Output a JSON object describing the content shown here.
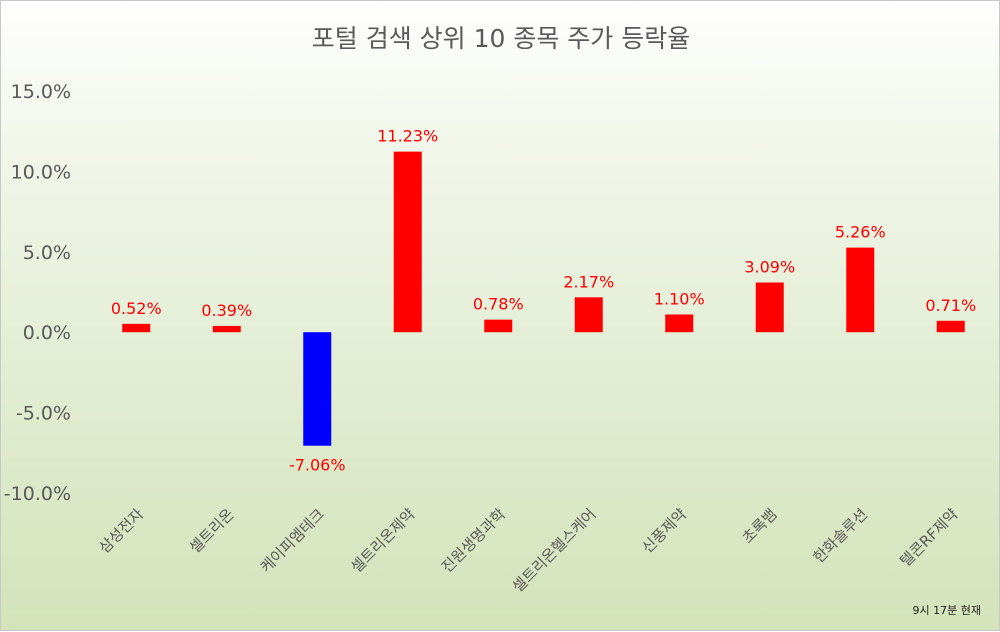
{
  "chart_data": {
    "type": "bar",
    "title": "포털 검색 상위 10 종목 주가 등락율",
    "categories": [
      "삼성전자",
      "셀트리온",
      "케이피엠테크",
      "셀트리온제약",
      "진원생명과학",
      "셀트리온헬스케어",
      "신풍제약",
      "초록뱀",
      "한화솔루션",
      "텔콘RF제약"
    ],
    "values": [
      0.52,
      0.39,
      -7.06,
      11.23,
      0.78,
      2.17,
      1.1,
      3.09,
      5.26,
      0.71
    ],
    "value_labels": [
      "0.52%",
      "0.39%",
      "-7.06%",
      "11.23%",
      "0.78%",
      "2.17%",
      "1.10%",
      "3.09%",
      "5.26%",
      "0.71%"
    ],
    "y_ticks": [
      15,
      10,
      5,
      0,
      -5,
      -10
    ],
    "y_tick_labels": [
      "15.0%",
      "10.0%",
      "5.0%",
      "0.0%",
      "-5.0%",
      "-10.0%"
    ],
    "ylim": [
      -10,
      15
    ],
    "xlabel": "",
    "ylabel": "",
    "grid": false,
    "colors": {
      "positive": "#ff0000",
      "negative": "#0000ff",
      "label": "#ff0000",
      "tick": "#595959"
    },
    "note": "9시 17분 현재"
  }
}
